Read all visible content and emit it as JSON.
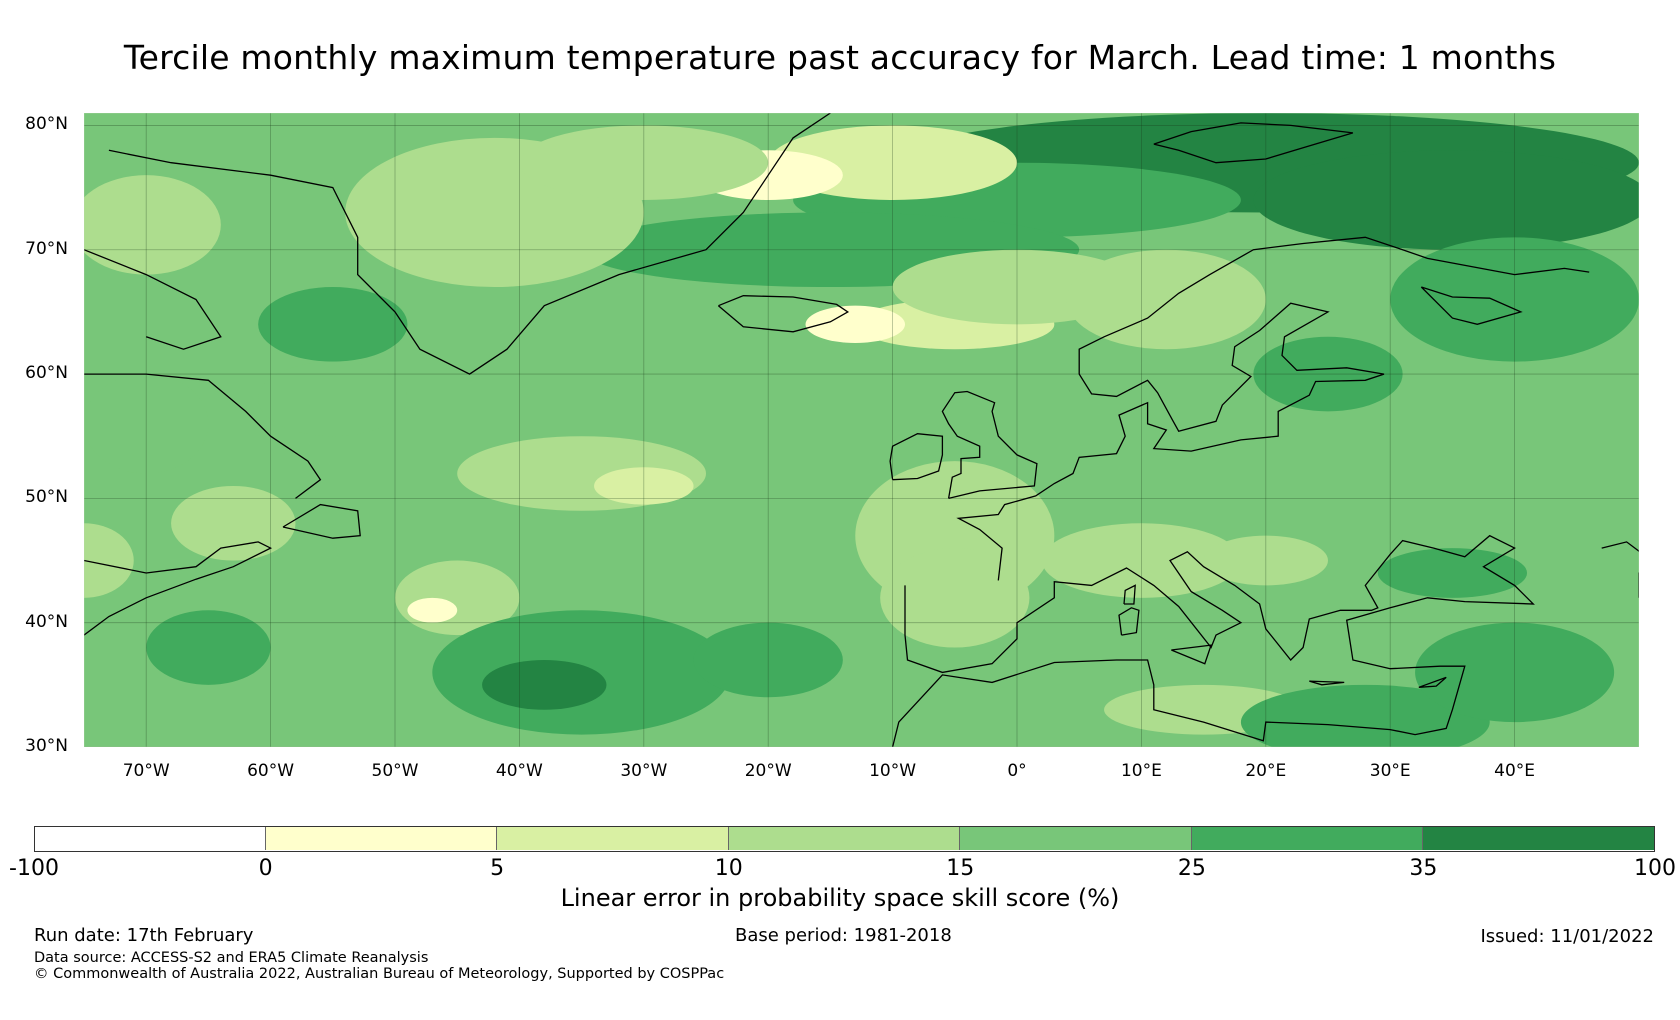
{
  "title": "Tercile monthly maximum temperature past accuracy for March. Lead time: 1 months",
  "map": {
    "region": "North Atlantic and Europe",
    "lon_range": [
      -75,
      50
    ],
    "lat_range": [
      30,
      81
    ],
    "lat_labels": [
      "80°N",
      "70°N",
      "60°N",
      "50°N",
      "40°N",
      "30°N"
    ],
    "lon_labels": [
      "70°W",
      "60°W",
      "50°W",
      "40°W",
      "30°W",
      "20°W",
      "10°W",
      "0°",
      "10°E",
      "20°E",
      "30°E",
      "40°E"
    ],
    "ocean_color": "#78c679",
    "land_outline_color": "#000000"
  },
  "legend": {
    "ticks": [
      "-100",
      "0",
      "5",
      "10",
      "15",
      "25",
      "35",
      "100"
    ],
    "colors": [
      "#ffffff",
      "#ffffcc",
      "#d9f0a3",
      "#addd8e",
      "#78c679",
      "#41ab5d",
      "#238443"
    ],
    "label": "Linear error in probability space skill score (%)"
  },
  "footer": {
    "run_date": "Run date: 17th February",
    "base_period": "Base period: 1981-2018",
    "issued": "Issued: 11/01/2022",
    "data_source": "Data source: ACCESS-S2 and ERA5 Climate Reanalysis",
    "copyright": "© Commonwealth of Australia 2022, Australian Bureau of Meteorology, Supported by COSPPac"
  }
}
